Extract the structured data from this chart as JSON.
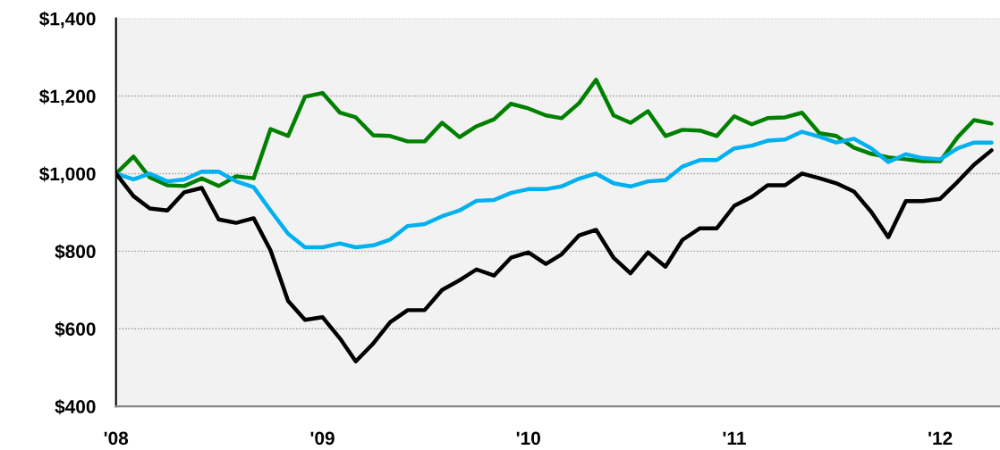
{
  "chart_data": {
    "type": "line",
    "x": [
      "2008-01",
      "2008-02",
      "2008-03",
      "2008-04",
      "2008-05",
      "2008-06",
      "2008-07",
      "2008-08",
      "2008-09",
      "2008-10",
      "2008-11",
      "2008-12",
      "2009-01",
      "2009-02",
      "2009-03",
      "2009-04",
      "2009-05",
      "2009-06",
      "2009-07",
      "2009-08",
      "2009-09",
      "2009-10",
      "2009-11",
      "2009-12",
      "2010-01",
      "2010-02",
      "2010-03",
      "2010-04",
      "2010-05",
      "2010-06",
      "2010-07",
      "2010-08",
      "2010-09",
      "2010-10",
      "2010-11",
      "2010-12",
      "2011-01",
      "2011-02",
      "2011-03",
      "2011-04",
      "2011-05",
      "2011-06",
      "2011-07",
      "2011-08",
      "2011-09",
      "2011-10",
      "2011-11",
      "2011-12",
      "2012-01",
      "2012-02",
      "2012-03",
      "2012-04"
    ],
    "series": [
      {
        "color": "#008000",
        "values": [
          1000,
          1044,
          990,
          970,
          968,
          988,
          968,
          993,
          988,
          1115,
          1097,
          1198,
          1208,
          1157,
          1145,
          1099,
          1097,
          1083,
          1083,
          1131,
          1094,
          1122,
          1140,
          1180,
          1168,
          1150,
          1143,
          1182,
          1242,
          1150,
          1131,
          1161,
          1097,
          1113,
          1111,
          1097,
          1148,
          1127,
          1143,
          1145,
          1157,
          1104,
          1097,
          1067,
          1051,
          1042,
          1037,
          1032,
          1032,
          1094,
          1138,
          1129
        ]
      },
      {
        "color": "#00b0f0",
        "values": [
          1000,
          985,
          1000,
          980,
          985,
          1005,
          1005,
          980,
          965,
          905,
          845,
          810,
          810,
          820,
          810,
          815,
          830,
          865,
          870,
          890,
          905,
          930,
          932,
          950,
          960,
          960,
          967,
          987,
          1000,
          975,
          967,
          980,
          983,
          1018,
          1035,
          1035,
          1065,
          1072,
          1085,
          1088,
          1108,
          1095,
          1080,
          1090,
          1065,
          1030,
          1050,
          1040,
          1037,
          1065,
          1080,
          1080
        ]
      },
      {
        "color": "#000000",
        "values": [
          1000,
          942,
          910,
          905,
          952,
          963,
          882,
          873,
          885,
          802,
          672,
          623,
          630,
          575,
          516,
          562,
          617,
          648,
          648,
          700,
          725,
          753,
          737,
          783,
          797,
          767,
          792,
          841,
          855,
          783,
          743,
          797,
          760,
          829,
          859,
          859,
          917,
          940,
          970,
          970,
          1000,
          988,
          975,
          954,
          901,
          836,
          929,
          929,
          935,
          979,
          1023,
          1060
        ]
      }
    ],
    "xlim": [
      "2008-01-01",
      "2012-04-16"
    ],
    "xticks": [
      {
        "value": "2008-01-01",
        "label": "'08"
      },
      {
        "value": "2009-01-01",
        "label": "'09"
      },
      {
        "value": "2010-01-01",
        "label": "'10"
      },
      {
        "value": "2011-01-01",
        "label": "'11"
      },
      {
        "value": "2012-01-01",
        "label": "'12"
      }
    ],
    "ylim": [
      400,
      1400
    ],
    "yticks": [
      {
        "value": 400,
        "label": "$400"
      },
      {
        "value": 600,
        "label": "$600"
      },
      {
        "value": 800,
        "label": "$800"
      },
      {
        "value": 1000,
        "label": "$1,000"
      },
      {
        "value": 1200,
        "label": "$1,200"
      },
      {
        "value": 1400,
        "label": "$1,400"
      }
    ],
    "grid": "y",
    "marker": "none",
    "line_style": "solid"
  }
}
